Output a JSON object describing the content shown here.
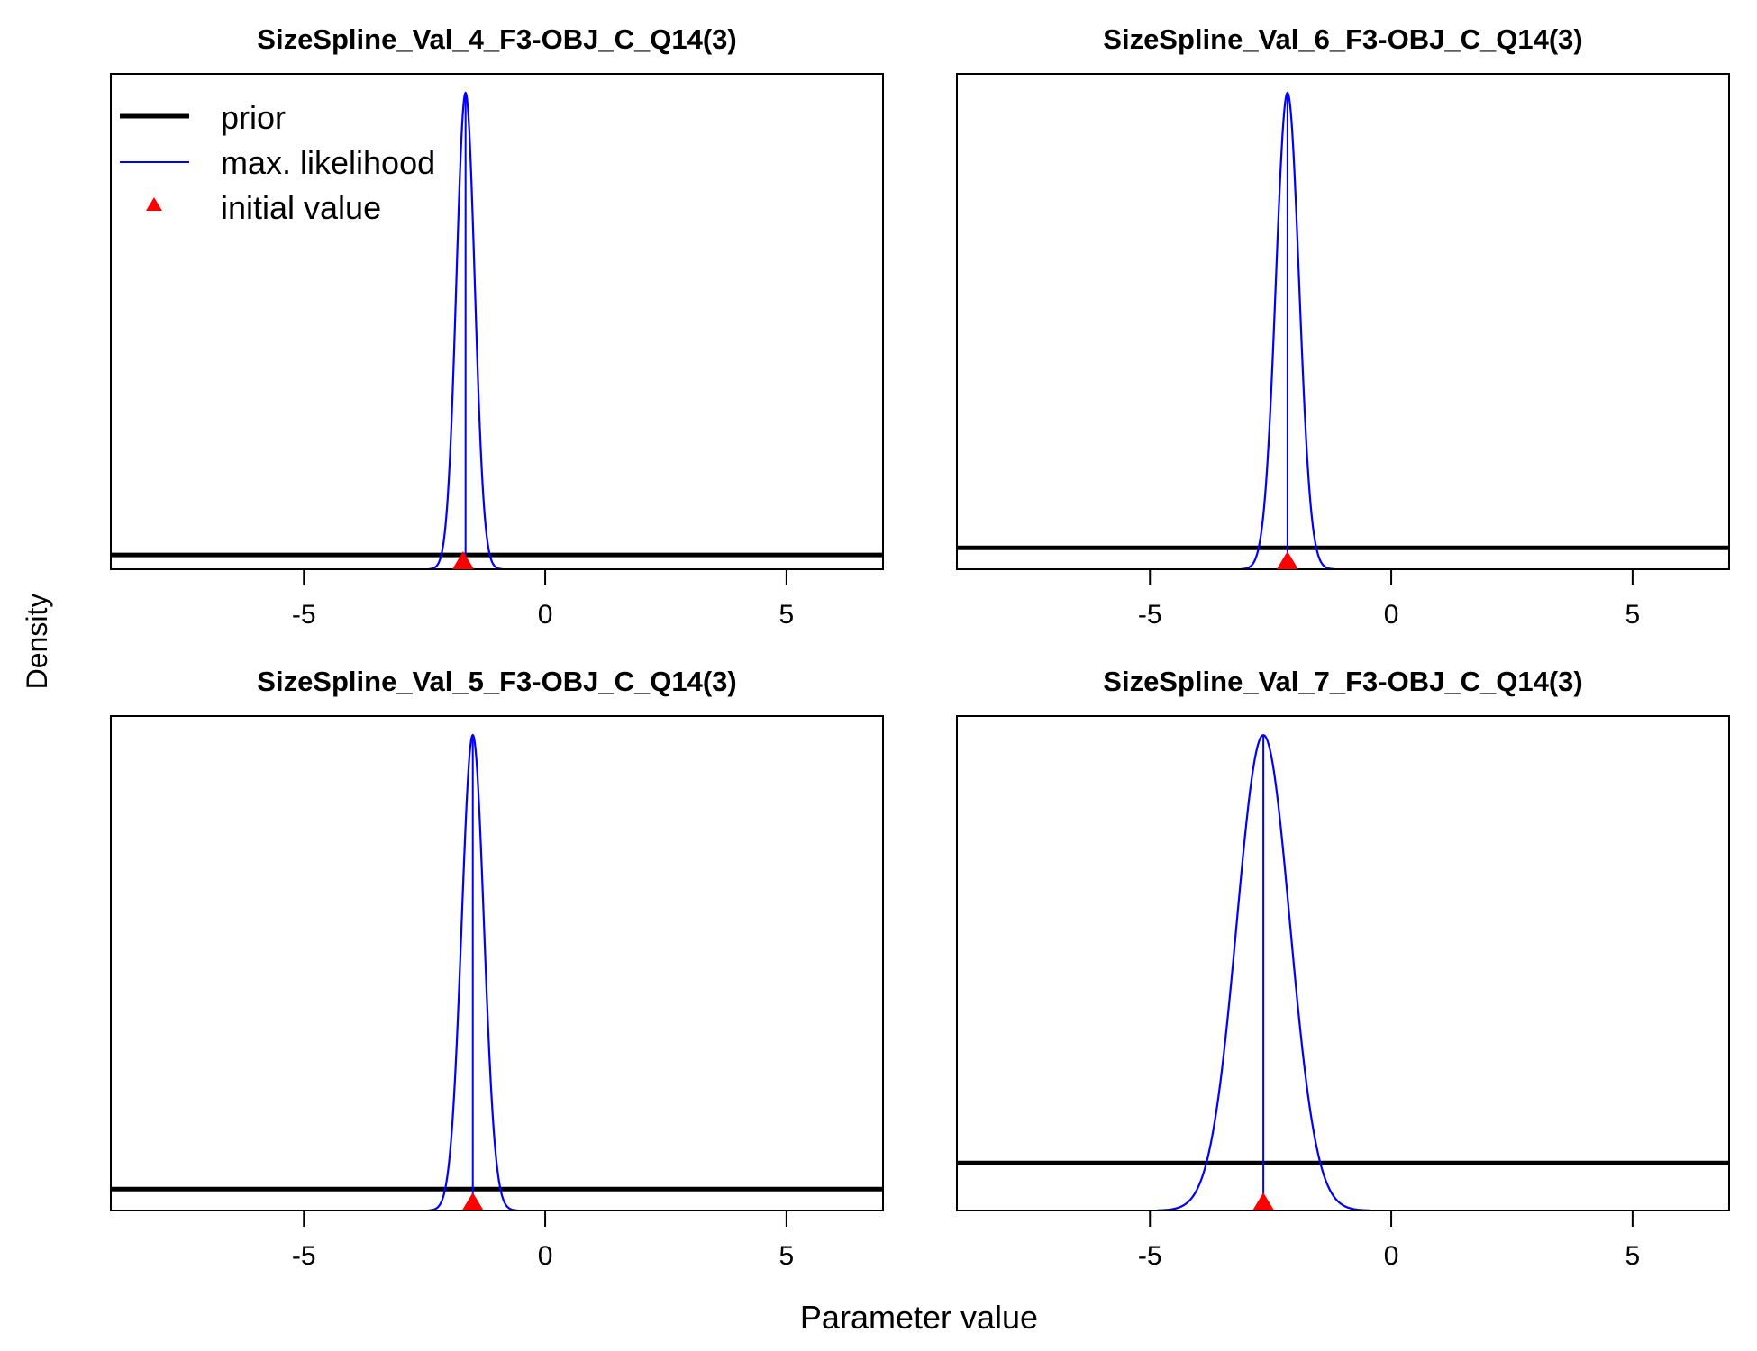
{
  "figure": {
    "ylabel": "Density",
    "xlabel": "Parameter value",
    "legend": {
      "placement": "top-left of first panel",
      "entries": [
        {
          "label": "prior",
          "color": "#000000",
          "style": "thick-line"
        },
        {
          "label": "max. likelihood",
          "color": "#0000ff",
          "style": "thin-line"
        },
        {
          "label": "initial value",
          "color": "#ff0000",
          "style": "triangle"
        }
      ]
    }
  },
  "chart_data": [
    {
      "type": "line",
      "title": "SizeSpline_Val_4_F3-OBJ_C_Q14(3)",
      "xlim": [
        -9,
        7
      ],
      "xticks": [
        -5,
        0,
        5
      ],
      "tick_labels": [
        "-5",
        "0",
        "5"
      ],
      "prior_level": 0.03,
      "mle": {
        "mean": -1.65,
        "sd": 0.19
      },
      "initial_value": -1.7
    },
    {
      "type": "line",
      "title": "SizeSpline_Val_6_F3-OBJ_C_Q14(3)",
      "xlim": [
        -9,
        7
      ],
      "xticks": [
        -5,
        0,
        5
      ],
      "tick_labels": [
        "-5",
        "0",
        "5"
      ],
      "prior_level": 0.045,
      "mle": {
        "mean": -2.15,
        "sd": 0.24
      },
      "initial_value": -2.15
    },
    {
      "type": "line",
      "title": "SizeSpline_Val_5_F3-OBJ_C_Q14(3)",
      "xlim": [
        -9,
        7
      ],
      "xticks": [
        -5,
        0,
        5
      ],
      "tick_labels": [
        "-5",
        "0",
        "5"
      ],
      "prior_level": 0.045,
      "mle": {
        "mean": -1.5,
        "sd": 0.23
      },
      "initial_value": -1.5
    },
    {
      "type": "line",
      "title": "SizeSpline_Val_7_F3-OBJ_C_Q14(3)",
      "xlim": [
        -9,
        7
      ],
      "xticks": [
        -5,
        0,
        5
      ],
      "tick_labels": [
        "-5",
        "0",
        "5"
      ],
      "prior_level": 0.1,
      "mle": {
        "mean": -2.65,
        "sd": 0.55
      },
      "initial_value": -2.65
    }
  ]
}
